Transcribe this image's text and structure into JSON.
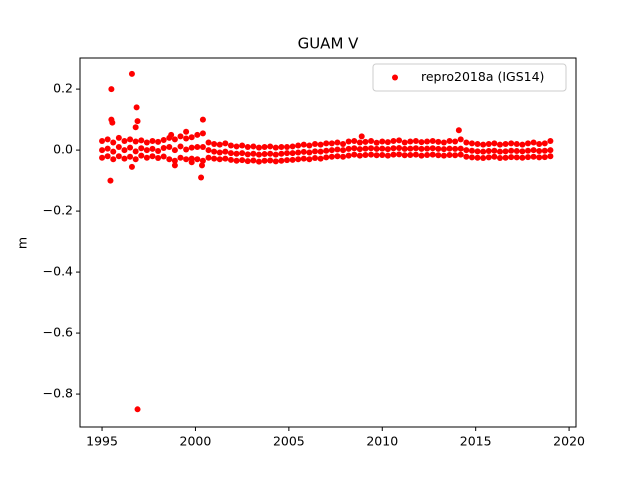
{
  "chart_data": {
    "type": "scatter",
    "title": "GUAM V",
    "ylabel": "m",
    "xlim": [
      1993.82,
      2020.37
    ],
    "ylim": [
      -0.908,
      0.302
    ],
    "xticks": [
      1995,
      2000,
      2005,
      2010,
      2015,
      2020
    ],
    "yticks": [
      {
        "value": -0.8,
        "label": "−0.8"
      },
      {
        "value": -0.6,
        "label": "−0.6"
      },
      {
        "value": -0.4,
        "label": "−0.4"
      },
      {
        "value": -0.2,
        "label": "−0.2"
      },
      {
        "value": 0,
        "label": "0.0"
      },
      0.2
    ],
    "grid": false,
    "legend": "upper right",
    "series": [
      {
        "name": "repro2018a (IGS14)",
        "color": "#ff0000",
        "x": [
          1995.0,
          1995.3,
          1995.6,
          1995.9,
          1996.2,
          1996.5,
          1996.8,
          1997.1,
          1997.4,
          1997.7,
          1998.0,
          1998.3,
          1998.6,
          1998.9,
          1999.2,
          1999.5,
          1999.8,
          2000.1,
          2000.4,
          2000.7,
          2001.0,
          2001.3,
          2001.6,
          2001.9,
          2002.2,
          2002.5,
          2002.8,
          2003.1,
          2003.4,
          2003.7,
          2004.0,
          2004.3,
          2004.6,
          2004.9,
          2005.2,
          2005.5,
          2005.8,
          2006.1,
          2006.4,
          2006.7,
          2007.0,
          2007.3,
          2007.6,
          2007.9,
          2008.2,
          2008.5,
          2008.8,
          2009.1,
          2009.4,
          2009.7,
          2010.0,
          2010.3,
          2010.6,
          2010.9,
          2011.2,
          2011.5,
          2011.8,
          2012.1,
          2012.4,
          2012.7,
          2013.0,
          2013.3,
          2013.6,
          2013.9,
          2014.2,
          2014.5,
          2014.8,
          2015.1,
          2015.4,
          2015.7,
          2016.0,
          2016.3,
          2016.6,
          2016.9,
          2017.2,
          2017.5,
          2017.8,
          2018.1,
          2018.4,
          2018.7,
          2019.0,
          1995.0,
          1995.3,
          1995.6,
          1995.9,
          1996.2,
          1996.5,
          1996.8,
          1997.1,
          1997.4,
          1997.7,
          1998.0,
          1998.3,
          1998.6,
          1998.9,
          1999.2,
          1999.5,
          1999.8,
          2000.1,
          2000.4,
          2000.7,
          2001.0,
          2001.3,
          2001.6,
          2001.9,
          2002.2,
          2002.5,
          2002.8,
          2003.1,
          2003.4,
          2003.7,
          2004.0,
          2004.3,
          2004.6,
          2004.9,
          2005.2,
          2005.5,
          2005.8,
          2006.1,
          2006.4,
          2006.7,
          2007.0,
          2007.3,
          2007.6,
          2007.9,
          2008.2,
          2008.5,
          2008.8,
          2009.1,
          2009.4,
          2009.7,
          2010.0,
          2010.3,
          2010.6,
          2010.9,
          2011.2,
          2011.5,
          2011.8,
          2012.1,
          2012.4,
          2012.7,
          2013.0,
          2013.3,
          2013.6,
          2013.9,
          2014.2,
          2014.5,
          2014.8,
          2015.1,
          2015.4,
          2015.7,
          2016.0,
          2016.3,
          2016.6,
          2016.9,
          2017.2,
          2017.5,
          2017.8,
          2018.1,
          2018.4,
          2018.7,
          2019.0,
          1995.0,
          1995.3,
          1995.6,
          1995.9,
          1996.2,
          1996.5,
          1996.8,
          1997.1,
          1997.4,
          1997.7,
          1998.0,
          1998.3,
          1998.6,
          1998.9,
          1999.2,
          1999.5,
          1999.8,
          2000.1,
          2000.4,
          2000.7,
          2001.0,
          2001.3,
          2001.6,
          2001.9,
          2002.2,
          2002.5,
          2002.8,
          2003.1,
          2003.4,
          2003.7,
          2004.0,
          2004.3,
          2004.6,
          2004.9,
          2005.2,
          2005.5,
          2005.8,
          2006.1,
          2006.4,
          2006.7,
          2007.0,
          2007.3,
          2007.6,
          2007.9,
          2008.2,
          2008.5,
          2008.8,
          2009.1,
          2009.4,
          2009.7,
          2010.0,
          2010.3,
          2010.6,
          2010.9,
          2011.2,
          2011.5,
          2011.8,
          2012.1,
          2012.4,
          2012.7,
          2013.0,
          2013.3,
          2013.6,
          2013.9,
          2014.2,
          2014.5,
          2014.8,
          2015.1,
          2015.4,
          2015.7,
          2016.0,
          2016.3,
          2016.6,
          2016.9,
          2017.2,
          2017.5,
          2017.8,
          2018.1,
          2018.4,
          2018.7,
          2019.0,
          1995.5,
          1995.5,
          1995.55,
          1995.45,
          1996.6,
          1996.85,
          1996.9,
          1996.8,
          1996.6,
          1996.9,
          1998.7,
          1999.5,
          1998.9,
          2000.4,
          2000.3,
          2000.35,
          2008.9,
          2014.1,
          1999.8
        ],
        "values": [
          0.03,
          0.035,
          0.025,
          0.04,
          0.03,
          0.035,
          0.028,
          0.032,
          0.025,
          0.03,
          0.027,
          0.033,
          0.04,
          0.035,
          0.045,
          0.038,
          0.042,
          0.05,
          0.055,
          0.025,
          0.02,
          0.018,
          0.022,
          0.015,
          0.012,
          0.015,
          0.01,
          0.012,
          0.008,
          0.01,
          0.012,
          0.008,
          0.01,
          0.01,
          0.012,
          0.015,
          0.018,
          0.015,
          0.02,
          0.018,
          0.022,
          0.022,
          0.025,
          0.02,
          0.028,
          0.03,
          0.025,
          0.027,
          0.03,
          0.024,
          0.028,
          0.026,
          0.03,
          0.032,
          0.025,
          0.028,
          0.03,
          0.026,
          0.028,
          0.03,
          0.027,
          0.025,
          0.03,
          0.028,
          0.035,
          0.025,
          0.022,
          0.02,
          0.018,
          0.02,
          0.022,
          0.018,
          0.02,
          0.022,
          0.02,
          0.018,
          0.022,
          0.025,
          0.02,
          0.022,
          0.03,
          0.0,
          0.005,
          -0.005,
          0.01,
          0.0,
          0.008,
          -0.004,
          0.006,
          0.0,
          0.004,
          -0.003,
          0.007,
          0.01,
          0.0,
          0.012,
          0.002,
          0.008,
          0.01,
          0.01,
          0.0,
          -0.005,
          -0.008,
          -0.005,
          -0.01,
          -0.012,
          -0.01,
          -0.014,
          -0.012,
          -0.015,
          -0.013,
          -0.012,
          -0.015,
          -0.012,
          -0.01,
          -0.01,
          -0.008,
          -0.006,
          -0.008,
          -0.004,
          -0.005,
          -0.002,
          0.0,
          0.002,
          0.0,
          0.004,
          0.006,
          0.003,
          0.005,
          0.006,
          0.004,
          0.005,
          0.003,
          0.006,
          0.007,
          0.004,
          0.005,
          0.006,
          0.004,
          0.005,
          0.006,
          0.004,
          0.003,
          0.005,
          0.004,
          0.005,
          0.0,
          -0.002,
          -0.004,
          -0.005,
          -0.003,
          -0.002,
          -0.005,
          -0.004,
          -0.002,
          -0.003,
          -0.004,
          -0.002,
          0.0,
          -0.003,
          -0.002,
          0.0,
          -0.025,
          -0.02,
          -0.03,
          -0.02,
          -0.028,
          -0.022,
          -0.03,
          -0.018,
          -0.025,
          -0.02,
          -0.026,
          -0.021,
          -0.03,
          -0.035,
          -0.025,
          -0.03,
          -0.028,
          -0.03,
          -0.035,
          -0.025,
          -0.028,
          -0.03,
          -0.028,
          -0.032,
          -0.035,
          -0.033,
          -0.036,
          -0.034,
          -0.038,
          -0.035,
          -0.034,
          -0.037,
          -0.035,
          -0.033,
          -0.032,
          -0.03,
          -0.028,
          -0.03,
          -0.026,
          -0.028,
          -0.024,
          -0.022,
          -0.02,
          -0.022,
          -0.018,
          -0.015,
          -0.018,
          -0.016,
          -0.015,
          -0.017,
          -0.016,
          -0.018,
          -0.015,
          -0.014,
          -0.017,
          -0.016,
          -0.015,
          -0.018,
          -0.016,
          -0.015,
          -0.017,
          -0.018,
          -0.016,
          -0.017,
          -0.015,
          -0.022,
          -0.024,
          -0.025,
          -0.026,
          -0.024,
          -0.022,
          -0.026,
          -0.025,
          -0.023,
          -0.024,
          -0.025,
          -0.023,
          -0.022,
          -0.024,
          -0.023,
          -0.02,
          0.2,
          0.1,
          0.09,
          -0.1,
          0.25,
          0.14,
          0.095,
          0.075,
          -0.055,
          -0.85,
          0.05,
          0.06,
          -0.05,
          0.1,
          -0.09,
          -0.05,
          0.045,
          0.065,
          -0.04
        ]
      }
    ]
  }
}
